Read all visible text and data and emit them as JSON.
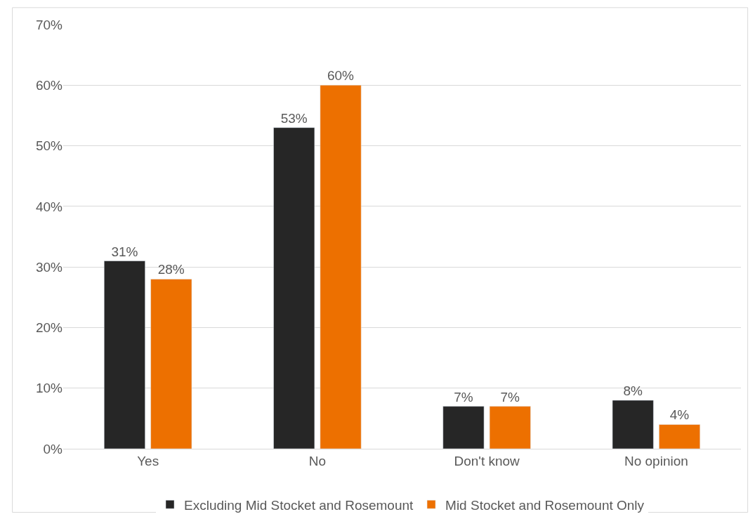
{
  "chart_data": {
    "type": "bar",
    "categories": [
      "Yes",
      "No",
      "Don't know",
      "No opinion"
    ],
    "series": [
      {
        "name": "Excluding Mid Stocket and Rosemount",
        "color": "#262626",
        "values": [
          31,
          53,
          7,
          8
        ],
        "value_labels": [
          "31%",
          "53%",
          "7%",
          "8%"
        ]
      },
      {
        "name": "Mid Stocket and Rosemount Only",
        "color": "#ed7000",
        "values": [
          28,
          60,
          7,
          4
        ],
        "value_labels": [
          "28%",
          "60%",
          "7%",
          "4%"
        ]
      }
    ],
    "ylim": [
      0,
      70
    ],
    "yticks": [
      {
        "value": 0,
        "label": "0%"
      },
      {
        "value": 10,
        "label": "10%"
      },
      {
        "value": 20,
        "label": "20%"
      },
      {
        "value": 30,
        "label": "30%"
      },
      {
        "value": 40,
        "label": "40%"
      },
      {
        "value": 50,
        "label": "50%"
      },
      {
        "value": 60,
        "label": "60%"
      },
      {
        "value": 70,
        "label": "70%"
      }
    ],
    "grid": "y",
    "legend": "bottom"
  }
}
